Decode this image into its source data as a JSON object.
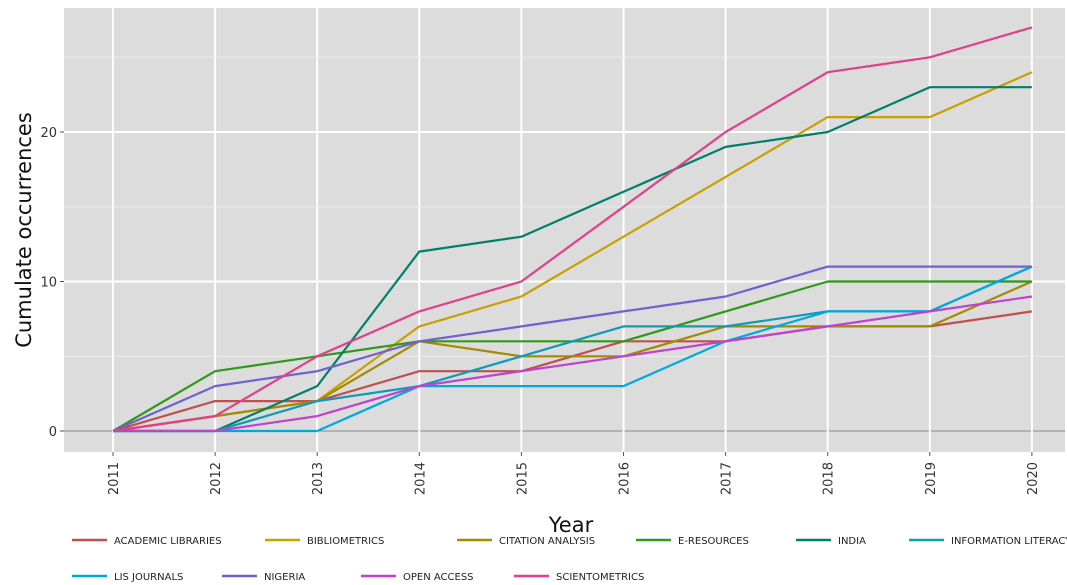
{
  "chart_data": {
    "type": "line",
    "title": "",
    "xlabel": "Year",
    "ylabel": "Cumulate occurrences",
    "x": [
      "2011",
      "2012",
      "2013",
      "2014",
      "2015",
      "2016",
      "2017",
      "2018",
      "2019",
      "2020"
    ],
    "ylim": [
      -1.5,
      28.5
    ],
    "yticks": [
      0,
      10,
      20
    ],
    "grid": true,
    "legend_position": "bottom",
    "series": [
      {
        "name": "ACADEMIC LIBRARIES",
        "color": "#c0504d",
        "values": [
          0,
          2,
          2,
          4,
          4,
          6,
          6,
          7,
          7,
          8
        ]
      },
      {
        "name": "BIBLIOMETRICS",
        "color": "#c8a000",
        "values": [
          0,
          1,
          2,
          7,
          9,
          13,
          17,
          21,
          21,
          24
        ]
      },
      {
        "name": "CITATION ANALYSIS",
        "color": "#a48a00",
        "values": [
          0,
          1,
          2,
          6,
          5,
          5,
          7,
          7,
          7,
          10
        ]
      },
      {
        "name": "E-RESOURCES",
        "color": "#2e9a1a",
        "values": [
          0,
          4,
          5,
          6,
          6,
          6,
          8,
          10,
          10,
          10
        ]
      },
      {
        "name": "INDIA",
        "color": "#00806a",
        "values": [
          0,
          0,
          3,
          12,
          13,
          16,
          19,
          20,
          23,
          23
        ]
      },
      {
        "name": "INFORMATION LITERACY",
        "color": "#0f9ab8",
        "values": [
          0,
          0,
          2,
          3,
          5,
          7,
          7,
          8,
          8,
          11
        ]
      },
      {
        "name": "LIS JOURNALS",
        "color": "#00a8e0",
        "values": [
          0,
          0,
          0,
          3,
          3,
          3,
          6,
          8,
          8,
          11
        ]
      },
      {
        "name": "NIGERIA",
        "color": "#7060d0",
        "values": [
          0,
          3,
          4,
          6,
          7,
          8,
          9,
          11,
          11,
          11
        ]
      },
      {
        "name": "OPEN ACCESS",
        "color": "#c040d0",
        "values": [
          0,
          0,
          1,
          3,
          4,
          5,
          6,
          7,
          8,
          9
        ]
      },
      {
        "name": "SCIENTOMETRICS",
        "color": "#e0408a",
        "values": [
          0,
          1,
          5,
          8,
          10,
          15,
          20,
          24,
          25,
          27
        ]
      }
    ]
  }
}
